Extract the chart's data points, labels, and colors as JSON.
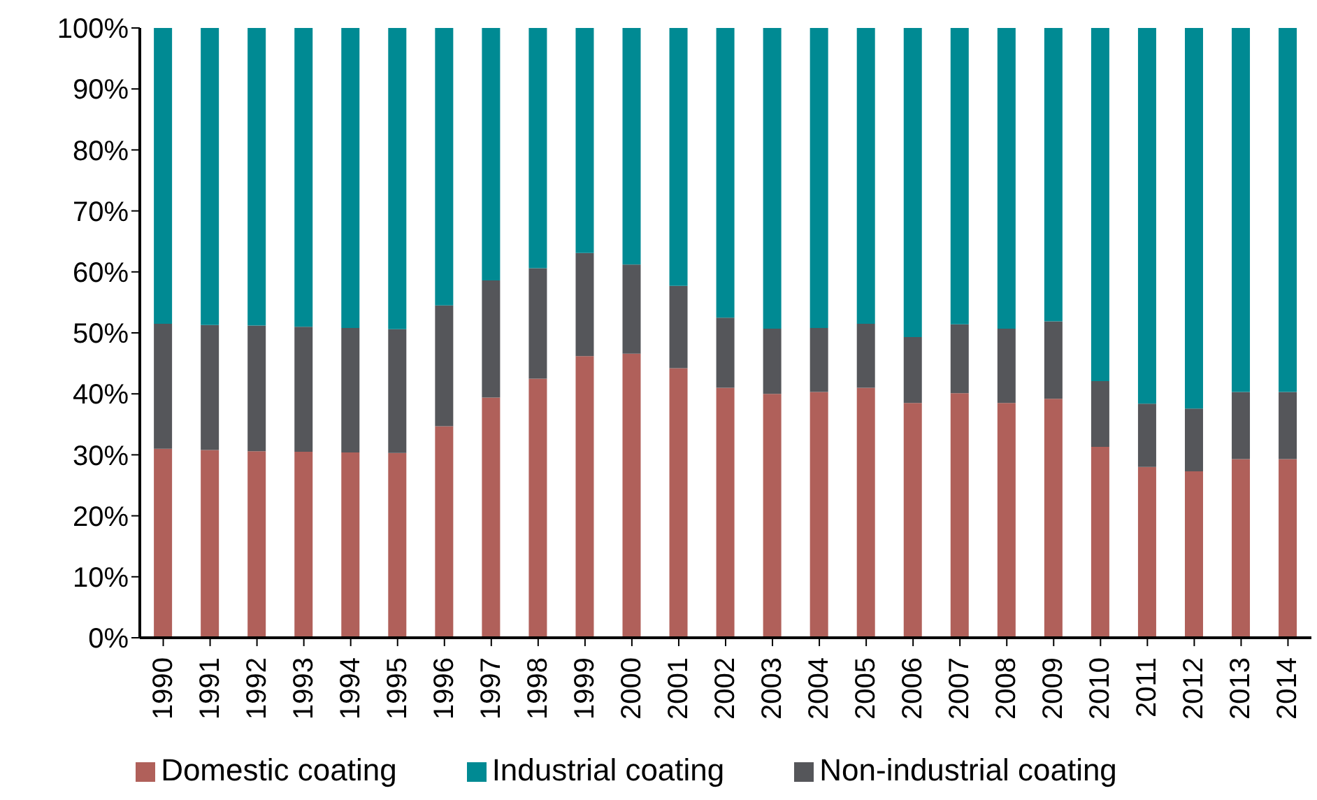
{
  "chart_data": {
    "type": "bar",
    "stacked": true,
    "categories": [
      "1990",
      "1991",
      "1992",
      "1993",
      "1994",
      "1995",
      "1996",
      "1997",
      "1998",
      "1999",
      "2000",
      "2001",
      "2002",
      "2003",
      "2004",
      "2005",
      "2006",
      "2007",
      "2008",
      "2009",
      "2010",
      "2011",
      "2012",
      "2013",
      "2014"
    ],
    "series": [
      {
        "name": "Domestic coating",
        "color": "#b0605a",
        "values": [
          31,
          30.8,
          30.6,
          30.5,
          30.4,
          30.3,
          34.7,
          39.4,
          42.5,
          46.2,
          46.6,
          44.2,
          41,
          40,
          40.3,
          41,
          38.5,
          40.1,
          38.5,
          39.2,
          31.3,
          28,
          27.3,
          29.3,
          29.3
        ]
      },
      {
        "name": "Non-industrial coating",
        "color": "#55565a",
        "values": [
          20.5,
          20.5,
          20.6,
          20.5,
          20.4,
          20.3,
          19.8,
          19.2,
          18.1,
          16.9,
          14.6,
          13.5,
          11.5,
          10.7,
          10.5,
          10.5,
          10.8,
          11.3,
          12.2,
          12.7,
          10.8,
          10.4,
          10.3,
          11,
          11
        ]
      },
      {
        "name": "Industrial coating",
        "color": "#008a93",
        "values": [
          48.5,
          48.7,
          48.8,
          49,
          49.2,
          49.4,
          45.5,
          41.4,
          39.4,
          36.9,
          38.8,
          42.3,
          47.5,
          49.3,
          49.2,
          48.5,
          50.7,
          48.6,
          49.3,
          48.1,
          57.9,
          61.6,
          62.4,
          59.7,
          59.7
        ]
      }
    ],
    "ylim": [
      0,
      100
    ],
    "yticks": [
      {
        "value": 0,
        "label": "0%"
      },
      {
        "value": 10,
        "label": "10%"
      },
      {
        "value": 20,
        "label": "20%"
      },
      {
        "value": 30,
        "label": "30%"
      },
      {
        "value": 40,
        "label": "40%"
      },
      {
        "value": 50,
        "label": "50%"
      },
      {
        "value": 60,
        "label": "60%"
      },
      {
        "value": 70,
        "label": "70%"
      },
      {
        "value": 80,
        "label": "80%"
      },
      {
        "value": 90,
        "label": "90%"
      },
      {
        "value": 100,
        "label": "100%"
      }
    ],
    "grid": false,
    "legend": "bottom"
  }
}
